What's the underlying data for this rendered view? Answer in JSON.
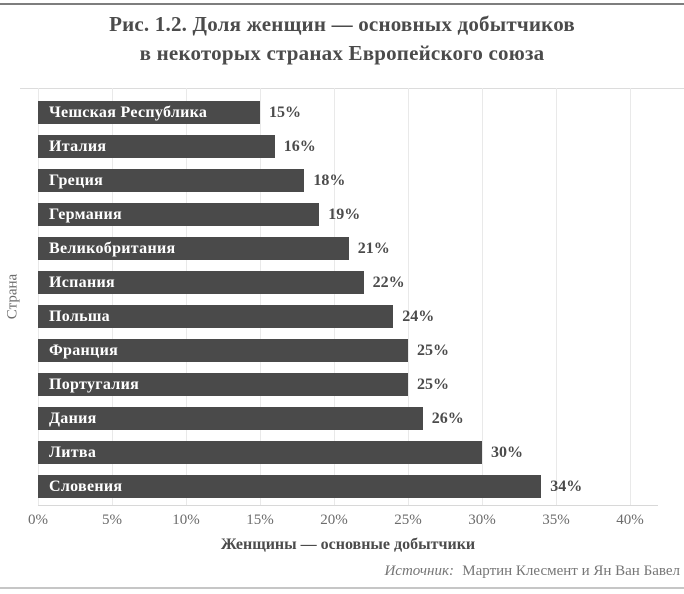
{
  "title": {
    "line1": "Рис. 1.2. Доля женщин — основных добытчиков",
    "line2": "в некоторых странах Европейского союза"
  },
  "source": {
    "prefix": "Источник:",
    "text": "Мартин Клесмент и Ян Ван Бавел"
  },
  "chart_data": {
    "type": "bar",
    "orientation": "horizontal",
    "title": "Рис. 1.2. Доля женщин — основных добытчиков в некоторых странах Европейского союза",
    "categories": [
      "Чешская Республика",
      "Италия",
      "Греция",
      "Германия",
      "Великобритания",
      "Испания",
      "Польша",
      "Франция",
      "Португалия",
      "Дания",
      "Литва",
      "Словения"
    ],
    "values": [
      15,
      16,
      18,
      19,
      21,
      22,
      24,
      25,
      25,
      26,
      30,
      34
    ],
    "value_labels": [
      "15%",
      "16%",
      "18%",
      "19%",
      "21%",
      "22%",
      "24%",
      "25%",
      "25%",
      "26%",
      "30%",
      "34%"
    ],
    "xlabel": "Женщины — основные добытчики",
    "ylabel": "Страна",
    "xtick_values": [
      0,
      5,
      10,
      15,
      20,
      25,
      30,
      35,
      40
    ],
    "xtick_labels": [
      "0%",
      "5%",
      "10%",
      "15%",
      "20%",
      "25%",
      "30%",
      "35%",
      "40%"
    ],
    "xlim": [
      0,
      42
    ],
    "grid": "vertical",
    "legend": "none",
    "bar_color": "#4a4a4a",
    "bar_label_color": "#ffffff",
    "gridline_color": "#e9e9e9"
  }
}
